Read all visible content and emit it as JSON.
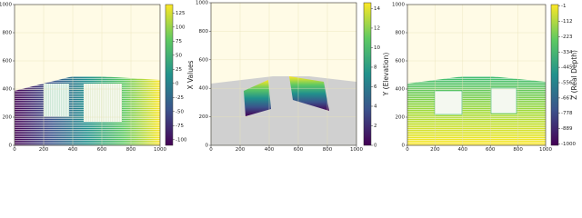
{
  "chart_data": [
    {
      "type": "image",
      "xlim": [
        0,
        1000
      ],
      "ylim": [
        0,
        1000
      ],
      "xticks": [
        0,
        200,
        400,
        600,
        800,
        1000
      ],
      "yticks": [
        0,
        200,
        400,
        600,
        800,
        1000
      ],
      "grid": true,
      "colorbar": {
        "label": "X Values",
        "lim": [
          -110,
          140
        ],
        "ticks": [
          125,
          100,
          75,
          50,
          25,
          0,
          -25,
          -50,
          -75,
          -100
        ]
      }
    },
    {
      "type": "image",
      "xlim": [
        0,
        1000
      ],
      "ylim": [
        0,
        1000
      ],
      "xticks": [
        0,
        200,
        400,
        600,
        800,
        1000
      ],
      "yticks": [
        0,
        200,
        400,
        600,
        800,
        1000
      ],
      "grid": true,
      "colorbar": {
        "label": "Y (Elevation)",
        "lim": [
          0,
          14.6
        ],
        "ticks": [
          0,
          2,
          4,
          6,
          8,
          10,
          12,
          14
        ]
      }
    },
    {
      "type": "image",
      "xlim": [
        0,
        1000
      ],
      "ylim": [
        0,
        1000
      ],
      "xticks": [
        0,
        200,
        400,
        600,
        800,
        1000
      ],
      "yticks": [
        0,
        200,
        400,
        600,
        800,
        1000
      ],
      "grid": true,
      "colorbar": {
        "label": "Z (Real Depth)",
        "lim": [
          -1010,
          10
        ],
        "ticks": [
          -1,
          -112,
          -223,
          -334,
          -445,
          -556,
          -667,
          -778,
          -889,
          -1000
        ]
      }
    }
  ]
}
